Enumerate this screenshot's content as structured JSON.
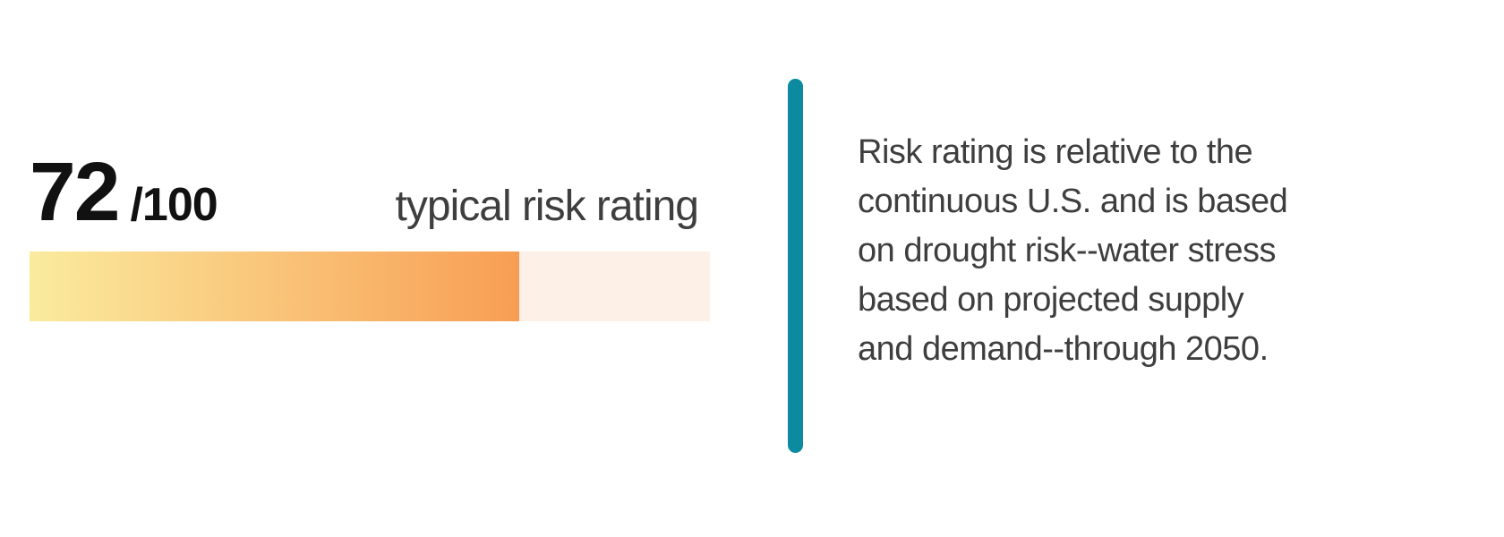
{
  "score": {
    "value": "72",
    "denominator": "/100",
    "label": "typical risk rating",
    "percent": 72,
    "max": 100
  },
  "description": {
    "lines": [
      "Risk rating is relative to the",
      "continuous U.S. and is based",
      "on drought risk--water stress",
      "based on projected supply",
      "and demand--through 2050."
    ]
  },
  "colors": {
    "accent_teal": "#0b8aa0",
    "bar_gradient_start": "#faeb9e",
    "bar_gradient_end": "#f89e54",
    "bar_track": "#fdf0e6",
    "score_text": "#111111",
    "body_text": "#3e3e3e"
  },
  "chart_data": {
    "type": "bar",
    "title": "typical risk rating",
    "categories": [
      "typical risk rating"
    ],
    "values": [
      72
    ],
    "max": 100,
    "value_label": "72 /100",
    "orientation": "horizontal",
    "fill_style": "yellow-to-orange gradient",
    "annotation": "Risk rating is relative to the continuous U.S. and is based on drought risk--water stress based on projected supply and demand--through 2050."
  }
}
